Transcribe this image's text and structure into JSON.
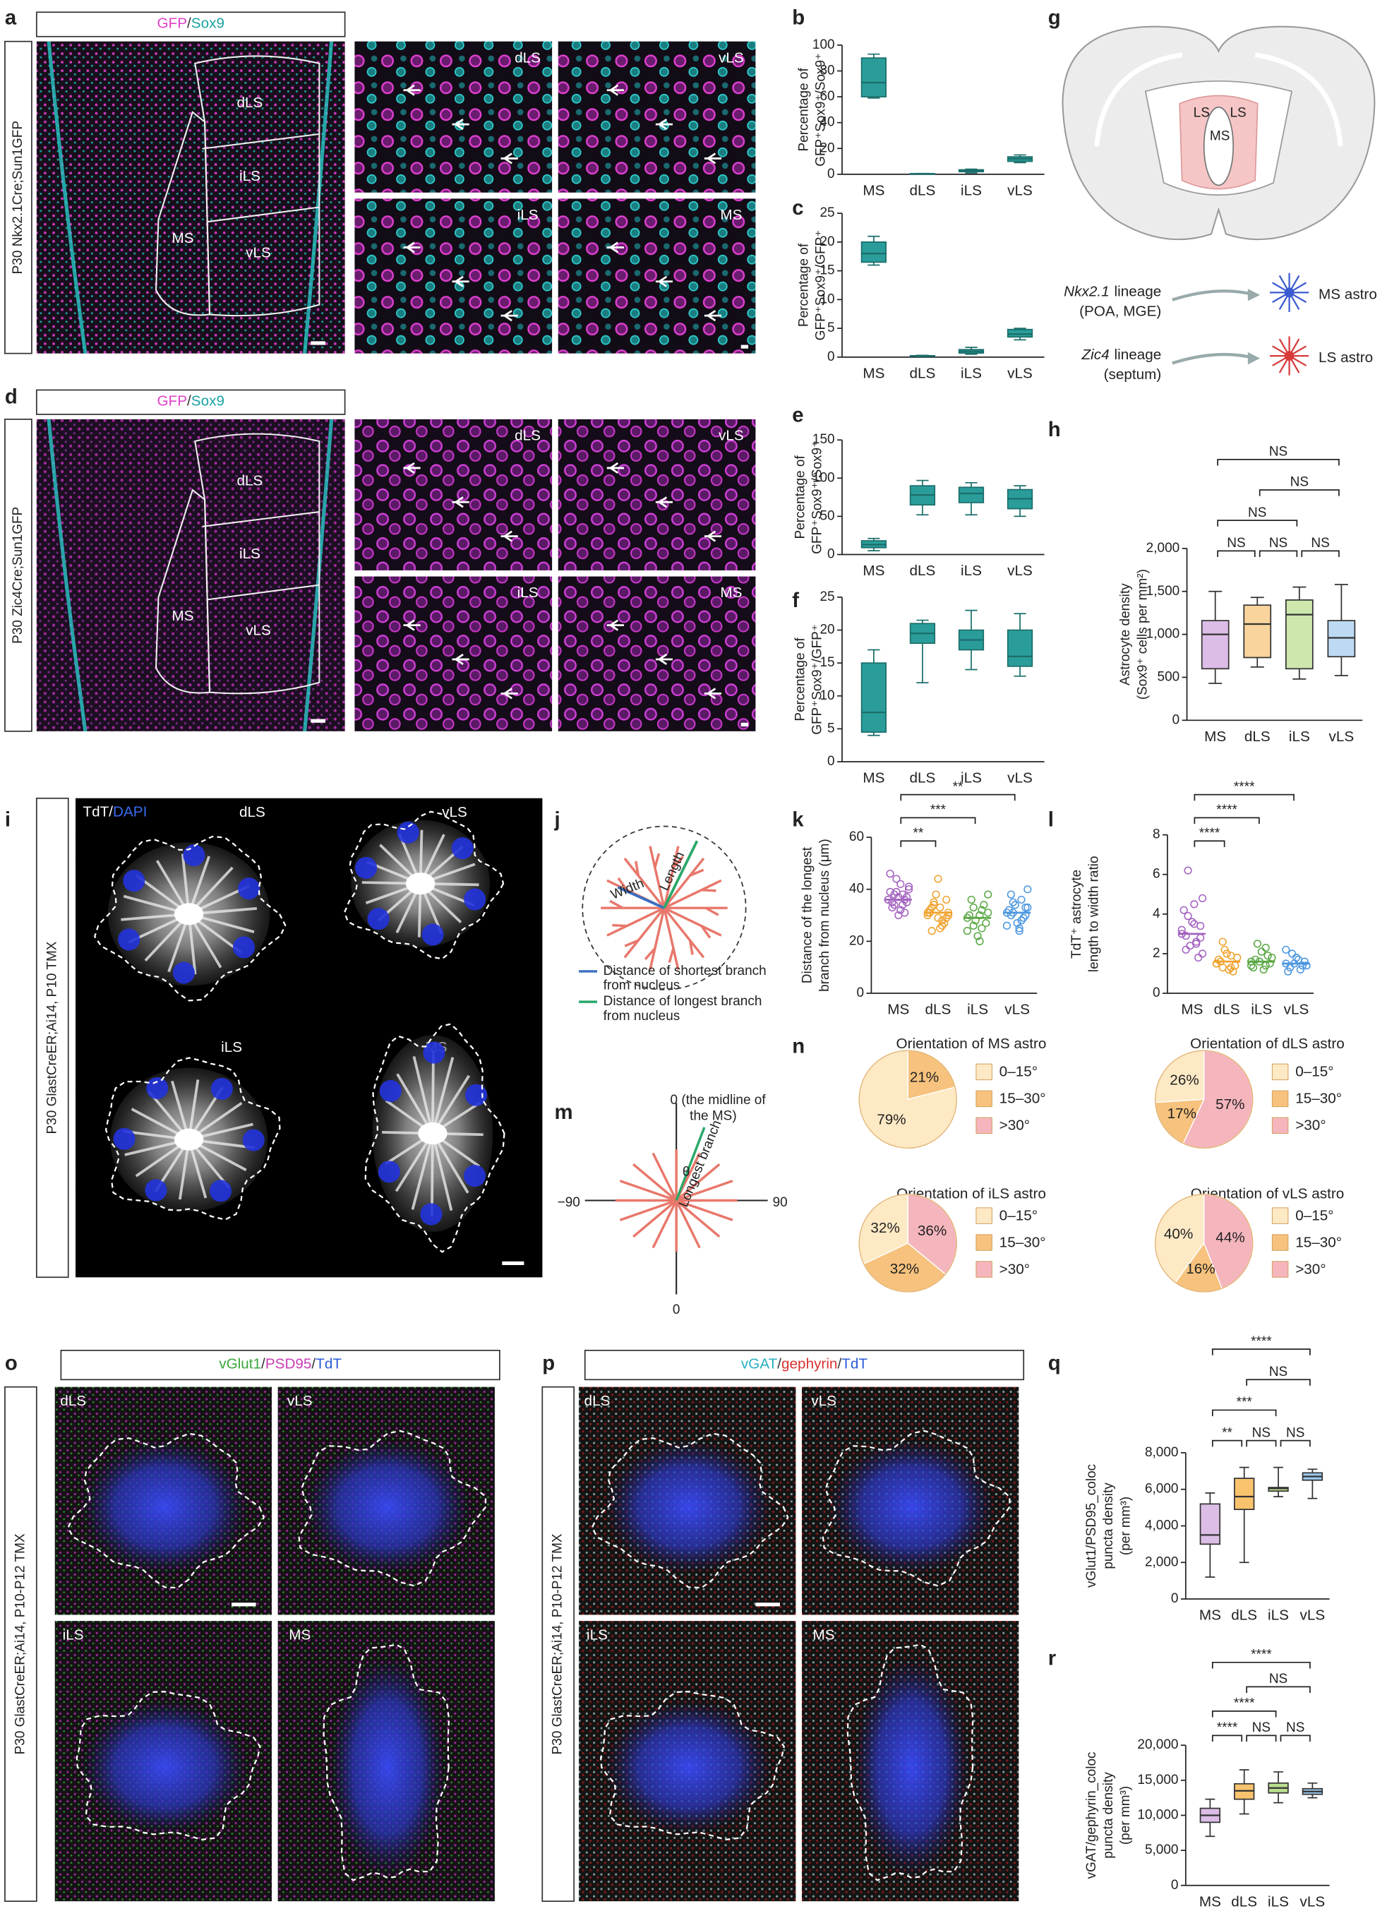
{
  "figure": {
    "panel_labels": [
      "a",
      "b",
      "c",
      "d",
      "e",
      "f",
      "g",
      "h",
      "i",
      "j",
      "k",
      "l",
      "m",
      "n",
      "o",
      "p",
      "q",
      "r"
    ],
    "a": {
      "header": [
        "GFP",
        "/",
        "Sox9"
      ],
      "header_colors": [
        "#e040c8",
        "#333333",
        "#1aa3a3"
      ],
      "side": "P30 Nkx2.1Cre;Sun1GFP",
      "regions": [
        "dLS",
        "iLS",
        "MS",
        "vLS"
      ],
      "insets": [
        "dLS",
        "vLS",
        "iLS",
        "MS"
      ]
    },
    "d": {
      "header": [
        "GFP",
        "/",
        "Sox9"
      ],
      "header_colors": [
        "#e040c8",
        "#333333",
        "#1aa3a3"
      ],
      "side": "P30 Zic4Cre;Sun1GFP",
      "regions": [
        "dLS",
        "iLS",
        "MS",
        "vLS"
      ],
      "insets": [
        "dLS",
        "vLS",
        "iLS",
        "MS"
      ]
    },
    "g": {
      "regions": [
        "LS",
        "LS",
        "MS"
      ],
      "lineages": [
        {
          "gene": "Nkx2.1",
          "word": "lineage",
          "source": "(POA, MGE)",
          "target": "MS astro"
        },
        {
          "gene": "Zic4",
          "word": "lineage",
          "source": "(septum)",
          "target": "LS astro"
        }
      ]
    },
    "i": {
      "side": "P30 GlastCreER;Ai14, P10 TMX",
      "header": [
        "TdT",
        "/",
        "DAPI"
      ],
      "header_colors": [
        "#ffffff",
        "#ffffff",
        "#3a6cf0"
      ],
      "cells": [
        "dLS",
        "vLS",
        "iLS",
        "MS"
      ]
    },
    "j": {
      "width": "Width",
      "length": "Length",
      "legend": [
        [
          "Distance of shortest branch",
          "from nucleus"
        ],
        [
          "Distance of longest branch",
          "from nucleus"
        ]
      ]
    },
    "m": {
      "top": [
        "0 (the midline of",
        "the MS)"
      ],
      "left": "−90",
      "right": "90",
      "bottom": "0",
      "angle": "θ",
      "branch": "Longest branch"
    },
    "o": {
      "header": [
        "vGlut1",
        "/",
        "PSD95",
        "/",
        "TdT"
      ],
      "header_colors": [
        "#3aa63a",
        "#333333",
        "#c83cb4",
        "#333333",
        "#2a5ad8"
      ],
      "side": "P30 GlastCreER;Ai14, P10-P12 TMX",
      "cells": [
        "dLS",
        "vLS",
        "iLS",
        "MS"
      ]
    },
    "p": {
      "header": [
        "vGAT",
        "/",
        "gephyrin",
        "/",
        "TdT"
      ],
      "header_colors": [
        "#28b0c0",
        "#333333",
        "#d83030",
        "#333333",
        "#2a5ad8"
      ],
      "side": "P30 GlastCreER;Ai14, P10-P12 TMX",
      "cells": [
        "dLS",
        "vLS",
        "iLS",
        "MS"
      ]
    }
  },
  "chart_data": [
    {
      "type": "box",
      "ylabel": [
        "Percentage of",
        "GFP⁺Sox9⁺/Sox9⁺"
      ],
      "categories": [
        "MS",
        "dLS",
        "iLS",
        "vLS"
      ],
      "ylim": [
        0,
        100
      ],
      "yticks": [
        0,
        20,
        40,
        60,
        80,
        100
      ],
      "min": [
        59,
        0.2,
        1,
        9
      ],
      "q1": [
        60,
        0.3,
        2,
        10
      ],
      "median": [
        71,
        0.4,
        3,
        12
      ],
      "q3": [
        90,
        0.5,
        3.5,
        13.5
      ],
      "max": [
        93,
        0.6,
        4,
        15
      ],
      "colors": [
        "#2a9d9a",
        "#2a9d9a",
        "#2a9d9a",
        "#2a9d9a"
      ],
      "edge_color": "#1b6e6b"
    },
    {
      "type": "box",
      "ylabel": [
        "Percentage of",
        "GFP⁺Sox9⁺/GFP⁺"
      ],
      "categories": [
        "MS",
        "dLS",
        "iLS",
        "vLS"
      ],
      "ylim": [
        0,
        25
      ],
      "yticks": [
        0,
        5,
        10,
        15,
        20,
        25
      ],
      "min": [
        16,
        0.1,
        0.5,
        3
      ],
      "q1": [
        16.5,
        0.15,
        0.7,
        3.5
      ],
      "median": [
        18,
        0.2,
        1,
        4
      ],
      "q3": [
        20,
        0.25,
        1.3,
        4.8
      ],
      "max": [
        21,
        0.3,
        1.7,
        5
      ],
      "colors": [
        "#2a9d9a",
        "#2a9d9a",
        "#2a9d9a",
        "#2a9d9a"
      ],
      "edge_color": "#1b6e6b"
    },
    {
      "type": "box",
      "ylabel": [
        "Percentage of",
        "GFP⁺Sox9⁺/Sox9⁺"
      ],
      "categories": [
        "MS",
        "dLS",
        "iLS",
        "vLS"
      ],
      "ylim": [
        0,
        150
      ],
      "yticks": [
        0,
        50,
        100,
        150
      ],
      "min": [
        5,
        52,
        52,
        50
      ],
      "q1": [
        9,
        65,
        68,
        60
      ],
      "median": [
        13,
        78,
        80,
        73
      ],
      "q3": [
        18,
        90,
        88,
        85
      ],
      "max": [
        21,
        97,
        94,
        90
      ],
      "colors": [
        "#2a9d9a",
        "#2a9d9a",
        "#2a9d9a",
        "#2a9d9a"
      ],
      "edge_color": "#1b6e6b"
    },
    {
      "type": "box",
      "ylabel": [
        "Percentage of",
        "GFP⁺Sox9⁺/GFP⁺"
      ],
      "categories": [
        "MS",
        "dLS",
        "iLS",
        "vLS"
      ],
      "ylim": [
        0,
        25
      ],
      "yticks": [
        0,
        5,
        10,
        15,
        20,
        25
      ],
      "min": [
        4,
        12,
        14,
        13
      ],
      "q1": [
        4.5,
        18,
        17,
        14.5
      ],
      "median": [
        7.5,
        19.5,
        18.5,
        16
      ],
      "q3": [
        15,
        21,
        20,
        20
      ],
      "max": [
        17,
        21.5,
        23,
        22.5
      ],
      "colors": [
        "#2a9d9a",
        "#2a9d9a",
        "#2a9d9a",
        "#2a9d9a"
      ],
      "edge_color": "#1b6e6b"
    },
    {
      "type": "box",
      "ylabel": [
        "Astrocyte density",
        "(Sox9⁺ cells per mm²)"
      ],
      "categories": [
        "MS",
        "dLS",
        "iLS",
        "vLS"
      ],
      "ylim": [
        0,
        2000
      ],
      "yticks": [
        0,
        500,
        {
          "value": 1000,
          "label": "1,000"
        },
        {
          "value": 1500,
          "label": "1,500"
        },
        {
          "value": 2000,
          "label": "2,000"
        }
      ],
      "min": [
        430,
        620,
        480,
        520
      ],
      "q1": [
        600,
        730,
        600,
        740
      ],
      "median": [
        1000,
        1120,
        1230,
        960
      ],
      "q3": [
        1160,
        1340,
        1400,
        1160
      ],
      "max": [
        1500,
        1430,
        1550,
        1580
      ],
      "colors": [
        "#dcbde6",
        "#f9d49c",
        "#cde7ad",
        "#bcdaf3"
      ],
      "edge_color": "#333333",
      "comparisons": [
        {
          "label": "NS",
          "groups": [
            0,
            1
          ]
        },
        {
          "label": "NS",
          "groups": [
            1,
            2
          ]
        },
        {
          "label": "NS",
          "groups": [
            2,
            3
          ]
        },
        {
          "label": "NS",
          "groups": [
            0,
            2
          ]
        },
        {
          "label": "NS",
          "groups": [
            1,
            3
          ]
        },
        {
          "label": "NS",
          "groups": [
            0,
            3
          ]
        }
      ]
    },
    {
      "type": "dot",
      "ylabel": [
        "Distance of the longest",
        "branch from nucleus (μm)"
      ],
      "categories": [
        "MS",
        "dLS",
        "iLS",
        "vLS"
      ],
      "ylim": [
        0,
        60
      ],
      "yticks": [
        0,
        20,
        40,
        60
      ],
      "values": [
        [
          36,
          38,
          34,
          40,
          42,
          33,
          35,
          37,
          39,
          31,
          44,
          36,
          34,
          38,
          41,
          32,
          35,
          37,
          30,
          46,
          36,
          39
        ],
        [
          31,
          28,
          34,
          30,
          25,
          33,
          36,
          29,
          32,
          27,
          38,
          30,
          26,
          35,
          31,
          33,
          24,
          29,
          44,
          31
        ],
        [
          29,
          25,
          33,
          31,
          20,
          36,
          27,
          22,
          30,
          34,
          28,
          24,
          32,
          26,
          38,
          30
        ],
        [
          31,
          28,
          35,
          33,
          25,
          38,
          30,
          27,
          32,
          29,
          34,
          26,
          36,
          31,
          40,
          24,
          30,
          33
        ]
      ],
      "means": [
        36,
        31,
        29,
        31
      ],
      "colors": [
        "#a463c0",
        "#f0a22e",
        "#5aa845",
        "#4d97e0"
      ],
      "comparisons": [
        {
          "label": "**",
          "groups": [
            0,
            1
          ]
        },
        {
          "label": "***",
          "groups": [
            0,
            2
          ]
        },
        {
          "label": "**",
          "groups": [
            0,
            3
          ]
        }
      ]
    },
    {
      "type": "dot",
      "ylabel": [
        "TdT⁺ astrocyte",
        "length to width ratio"
      ],
      "categories": [
        "MS",
        "dLS",
        "iLS",
        "vLS"
      ],
      "ylim": [
        0,
        8
      ],
      "yticks": [
        0,
        2,
        4,
        6,
        8
      ],
      "values": [
        [
          3,
          2.5,
          6.2,
          4.8,
          3.5,
          2.2,
          2.8,
          3.6,
          4.2,
          1.8,
          2.4,
          3.2,
          2.6,
          3.9,
          2,
          4.5,
          2.9,
          3.4
        ],
        [
          1.5,
          1.3,
          2.6,
          1.8,
          1.2,
          1.6,
          1.4,
          2,
          1.7,
          1.1,
          2.2,
          1.5,
          1.9,
          1.3
        ],
        [
          1.6,
          1.4,
          2.5,
          1.8,
          1.2,
          1.7,
          1.5,
          2.1,
          1.3,
          1.9,
          1.6,
          1.4,
          2.3
        ],
        [
          1.5,
          1.2,
          2,
          1.4,
          1.7,
          1.3,
          1.6,
          1.8,
          1.1,
          1.4,
          1.5,
          2.2
        ]
      ],
      "means": [
        3,
        1.6,
        1.6,
        1.5
      ],
      "colors": [
        "#a463c0",
        "#f0a22e",
        "#5aa845",
        "#4d97e0"
      ],
      "comparisons": [
        {
          "label": "****",
          "groups": [
            0,
            1
          ]
        },
        {
          "label": "****",
          "groups": [
            0,
            2
          ]
        },
        {
          "label": "****",
          "groups": [
            0,
            3
          ]
        }
      ]
    },
    {
      "type": "pie",
      "title": "Orientation of MS astro",
      "labels": [
        "0–15°",
        "15–30°",
        ">30°"
      ],
      "values": [
        79,
        21,
        null
      ],
      "value_labels": [
        "79%",
        "21%",
        null
      ],
      "colors": [
        "#fde9c4",
        "#f6c27d",
        "#f5b5bd"
      ]
    },
    {
      "type": "pie",
      "title": "Orientation of dLS astro",
      "labels": [
        "0–15°",
        "15–30°",
        ">30°"
      ],
      "values": [
        26,
        17,
        57
      ],
      "value_labels": [
        "26%",
        "17%",
        "57%"
      ],
      "colors": [
        "#fde9c4",
        "#f6c27d",
        "#f5b5bd"
      ]
    },
    {
      "type": "pie",
      "title": "Orientation of iLS astro",
      "labels": [
        "0–15°",
        "15–30°",
        ">30°"
      ],
      "values": [
        32,
        32,
        36
      ],
      "value_labels": [
        "32%",
        "32%",
        "36%"
      ],
      "colors": [
        "#fde9c4",
        "#f6c27d",
        "#f5b5bd"
      ]
    },
    {
      "type": "pie",
      "title": "Orientation of vLS astro",
      "labels": [
        "0–15°",
        "15–30°",
        ">30°"
      ],
      "values": [
        40,
        16,
        44
      ],
      "value_labels": [
        "40%",
        "16%",
        "44%"
      ],
      "colors": [
        "#fde9c4",
        "#f6c27d",
        "#f5b5bd"
      ]
    },
    {
      "type": "box",
      "ylabel": [
        "vGlut1/PSD95_coloc",
        "puncta density",
        "(per mm³)"
      ],
      "categories": [
        "MS",
        "dLS",
        "iLS",
        "vLS"
      ],
      "ylim": [
        0,
        8000
      ],
      "yticks": [
        0,
        {
          "value": 2000,
          "label": "2,000"
        },
        {
          "value": 4000,
          "label": "4,000"
        },
        {
          "value": 6000,
          "label": "6,000"
        },
        {
          "value": 8000,
          "label": "8,000"
        }
      ],
      "min": [
        1200,
        2000,
        5600,
        5500
      ],
      "q1": [
        3000,
        4900,
        5900,
        6500
      ],
      "median": [
        3500,
        5600,
        6050,
        6700
      ],
      "q3": [
        5200,
        6600,
        6100,
        6900
      ],
      "max": [
        5800,
        7200,
        7200,
        7100
      ],
      "colors": [
        "#dcbde6",
        "#f9c36e",
        "#b9de8e",
        "#9ccbf0"
      ],
      "edge_color": "#333333",
      "comparisons": [
        {
          "label": "**",
          "groups": [
            0,
            1
          ]
        },
        {
          "label": "NS",
          "groups": [
            1,
            2
          ]
        },
        {
          "label": "NS",
          "groups": [
            2,
            3
          ]
        },
        {
          "label": "***",
          "groups": [
            0,
            2
          ]
        },
        {
          "label": "NS",
          "groups": [
            1,
            3
          ]
        },
        {
          "label": "****",
          "groups": [
            0,
            3
          ]
        }
      ]
    },
    {
      "type": "box",
      "ylabel": [
        "vGAT/gephyrin_coloc",
        "puncta density",
        "(per mm³)"
      ],
      "categories": [
        "MS",
        "dLS",
        "iLS",
        "vLS"
      ],
      "ylim": [
        0,
        20000
      ],
      "yticks": [
        0,
        {
          "value": 5000,
          "label": "5,000"
        },
        {
          "value": 10000,
          "label": "10,000"
        },
        {
          "value": 15000,
          "label": "15,000"
        },
        {
          "value": 20000,
          "label": "20,000"
        }
      ],
      "min": [
        7000,
        10200,
        11800,
        12500
      ],
      "q1": [
        9000,
        12300,
        13200,
        13000
      ],
      "median": [
        10000,
        13500,
        13900,
        13400
      ],
      "q3": [
        11000,
        14500,
        14600,
        13800
      ],
      "max": [
        12300,
        16500,
        16200,
        14600
      ],
      "colors": [
        "#dcbde6",
        "#f9c36e",
        "#b9de8e",
        "#9ccbf0"
      ],
      "edge_color": "#333333",
      "comparisons": [
        {
          "label": "****",
          "groups": [
            0,
            1
          ]
        },
        {
          "label": "NS",
          "groups": [
            1,
            2
          ]
        },
        {
          "label": "NS",
          "groups": [
            2,
            3
          ]
        },
        {
          "label": "****",
          "groups": [
            0,
            2
          ]
        },
        {
          "label": "NS",
          "groups": [
            1,
            3
          ]
        },
        {
          "label": "****",
          "groups": [
            0,
            3
          ]
        }
      ]
    }
  ]
}
